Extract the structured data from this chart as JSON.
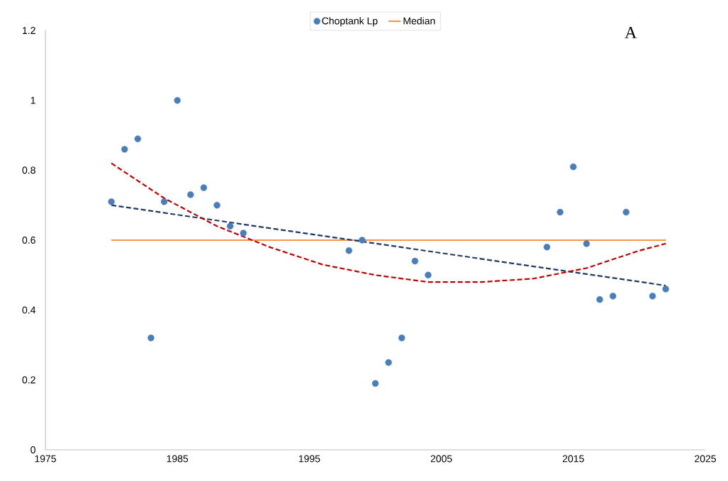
{
  "chart_data": {
    "type": "scatter",
    "xlim": [
      1975,
      2025
    ],
    "xticks": [
      1975,
      1985,
      1995,
      2005,
      2015,
      2025
    ],
    "ylim": [
      0,
      1.2
    ],
    "yticks": [
      0,
      0.2,
      0.4,
      0.6,
      0.8,
      1,
      1.2
    ],
    "legend": "top",
    "annotations": [
      "A"
    ],
    "series": [
      {
        "name": "Choptank Lp",
        "marker": "circle",
        "color": "#4a7ebb",
        "x": [
          1980,
          1981,
          1982,
          1983,
          1984,
          1985,
          1986,
          1987,
          1988,
          1989,
          1990,
          1998,
          1999,
          2000,
          2001,
          2002,
          2003,
          2004,
          2013,
          2014,
          2015,
          2016,
          2017,
          2018,
          2019,
          2021,
          2022
        ],
        "values": [
          0.71,
          0.86,
          0.89,
          0.32,
          0.71,
          1.0,
          0.73,
          0.75,
          0.7,
          0.64,
          0.62,
          0.57,
          0.6,
          0.19,
          0.25,
          0.32,
          0.54,
          0.5,
          0.58,
          0.68,
          0.81,
          0.59,
          0.43,
          0.44,
          0.68,
          0.44,
          0.46
        ]
      },
      {
        "name": "Median",
        "type": "line",
        "marker": "none",
        "color": "#f79646",
        "line_style": "solid",
        "x": [
          1980,
          2022
        ],
        "values": [
          0.6,
          0.6
        ]
      },
      {
        "type": "line",
        "marker": "none",
        "color": "#1f3864",
        "line_style": "dashed",
        "x": [
          1980,
          2022
        ],
        "values": [
          0.7,
          0.47
        ]
      },
      {
        "type": "line",
        "marker": "none",
        "color": "#c00000",
        "line_style": "dashed",
        "x": [
          1980,
          1984,
          1988,
          1992,
          1996,
          2000,
          2004,
          2008,
          2012,
          2016,
          2020,
          2022
        ],
        "values": [
          0.82,
          0.72,
          0.64,
          0.58,
          0.53,
          0.5,
          0.48,
          0.48,
          0.49,
          0.52,
          0.57,
          0.59
        ]
      }
    ]
  }
}
